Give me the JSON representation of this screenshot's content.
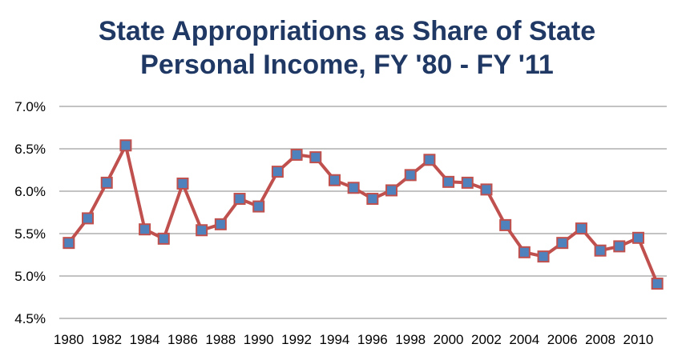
{
  "chart_data": {
    "type": "line",
    "title_lines": [
      "State Appropriations as Share of State",
      "Personal Income, FY '80 - FY '11"
    ],
    "xlabel": "",
    "ylabel": "",
    "x": [
      1980,
      1981,
      1982,
      1983,
      1984,
      1985,
      1986,
      1987,
      1988,
      1989,
      1990,
      1991,
      1992,
      1993,
      1994,
      1995,
      1996,
      1997,
      1998,
      1999,
      2000,
      2001,
      2002,
      2003,
      2004,
      2005,
      2006,
      2007,
      2008,
      2009,
      2010,
      2011
    ],
    "x_tick_labels": [
      "1980",
      "1982",
      "1984",
      "1986",
      "1988",
      "1990",
      "1992",
      "1994",
      "1996",
      "1998",
      "2000",
      "2002",
      "2004",
      "2006",
      "2008",
      "2010"
    ],
    "y_tick_labels": [
      "7.0%",
      "6.5%",
      "6.0%",
      "5.5%",
      "5.0%",
      "4.5%"
    ],
    "ylim": [
      0.045,
      0.07
    ],
    "y_format": "percent",
    "grid": true,
    "legend": "none",
    "series": [
      {
        "values": [
          0.0539,
          0.0568,
          0.061,
          0.0654,
          0.0555,
          0.0544,
          0.0609,
          0.0554,
          0.0561,
          0.0591,
          0.0582,
          0.0623,
          0.0643,
          0.064,
          0.0613,
          0.0604,
          0.0591,
          0.0601,
          0.0619,
          0.0637,
          0.0611,
          0.061,
          0.0602,
          0.056,
          0.0528,
          0.0523,
          0.0539,
          0.0556,
          0.053,
          0.0535,
          0.0545,
          0.0491
        ],
        "line_color": "#c0504d",
        "marker_fill": "#4f81bd",
        "marker_stroke": "#c0504d"
      }
    ]
  }
}
